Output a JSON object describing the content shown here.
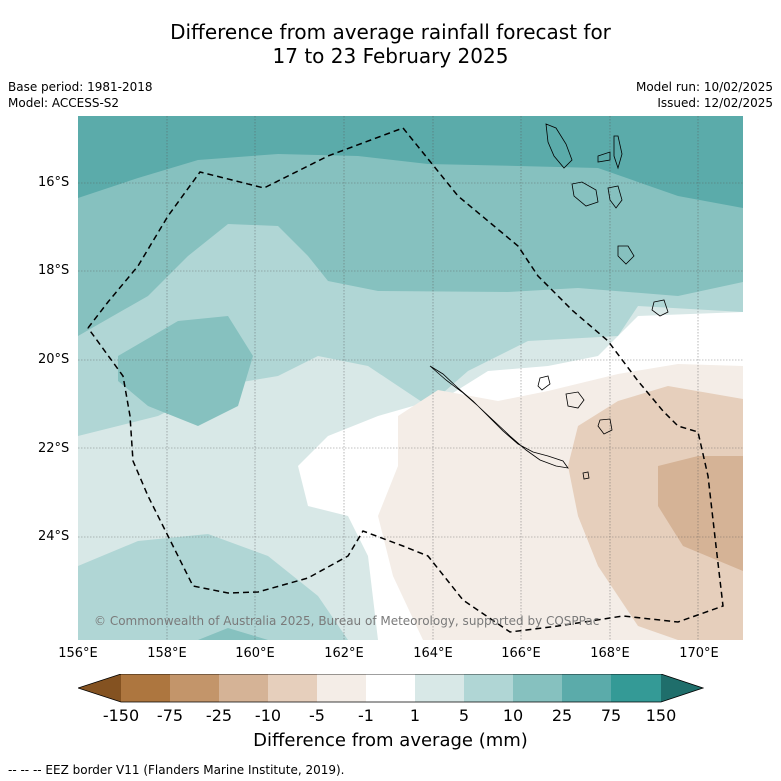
{
  "title_line1": "Difference from average rainfall forecast for",
  "title_line2": "17 to 23 February 2025",
  "meta_left": {
    "base_period": "Base period: 1981-2018",
    "model": "Model: ACCESS-S2"
  },
  "meta_right": {
    "model_run": "Model run: 10/02/2025",
    "issued": "Issued: 12/02/2025"
  },
  "copyright": "© Commonwealth of Australia 2025, Bureau of Meteorology, supported by COSPPac",
  "lat_labels": [
    "16°S",
    "18°S",
    "20°S",
    "22°S",
    "24°S"
  ],
  "lon_labels": [
    "156°E",
    "158°E",
    "160°E",
    "162°E",
    "164°E",
    "166°E",
    "168°E",
    "170°E"
  ],
  "colorbar": {
    "ticks": [
      "-150",
      "-75",
      "-25",
      "-10",
      "-5",
      "-1",
      "1",
      "5",
      "10",
      "25",
      "75",
      "150"
    ],
    "colors": [
      "#845221",
      "#ad763f",
      "#c3956a",
      "#d5b396",
      "#e6cfbc",
      "#f4ede7",
      "#ffffff",
      "#d8e8e7",
      "#b0d6d5",
      "#86c1bf",
      "#5babaa",
      "#349a96",
      "#1f6e6b"
    ],
    "title": "Difference from average (mm)"
  },
  "footnote": "--  --  -- EEZ border V11 (Flanders Marine Institute, 2019)."
}
